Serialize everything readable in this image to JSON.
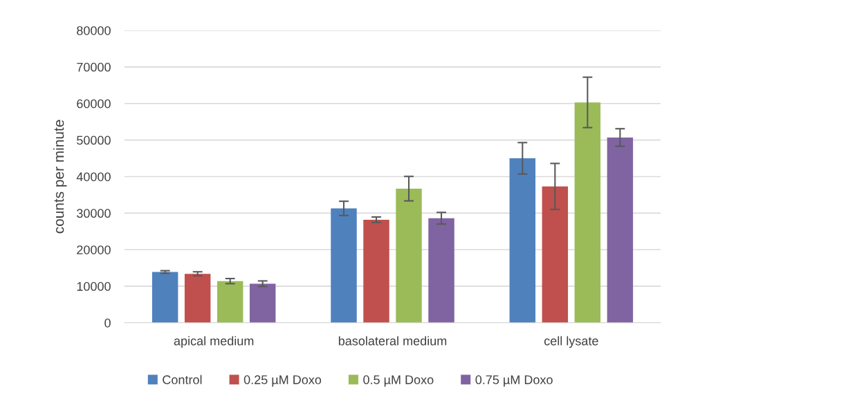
{
  "chart_data": {
    "type": "bar",
    "ylabel": "counts per minute",
    "categories": [
      "apical medium",
      "basolateral medium",
      "cell lysate"
    ],
    "series": [
      {
        "name": "Control",
        "color": "#4f81bd",
        "values": [
          13900,
          31300,
          45000
        ],
        "errors": [
          350,
          1950,
          4300
        ]
      },
      {
        "name": "0.25 µM Doxo",
        "color": "#c0504d",
        "values": [
          13400,
          28200,
          37300
        ],
        "errors": [
          550,
          750,
          6300
        ]
      },
      {
        "name": "0.5 µM Doxo",
        "color": "#9bbb59",
        "values": [
          11400,
          36700,
          60300
        ],
        "errors": [
          700,
          3350,
          6900
        ]
      },
      {
        "name": "0.75 µM Doxo",
        "color": "#8064a2",
        "values": [
          10700,
          28600,
          50700
        ],
        "errors": [
          750,
          1600,
          2400
        ]
      }
    ],
    "ylim": [
      0,
      80000
    ],
    "yticks": [
      0,
      10000,
      20000,
      30000,
      40000,
      50000,
      60000,
      70000,
      80000
    ],
    "grid": "y",
    "legend": "bottom"
  }
}
